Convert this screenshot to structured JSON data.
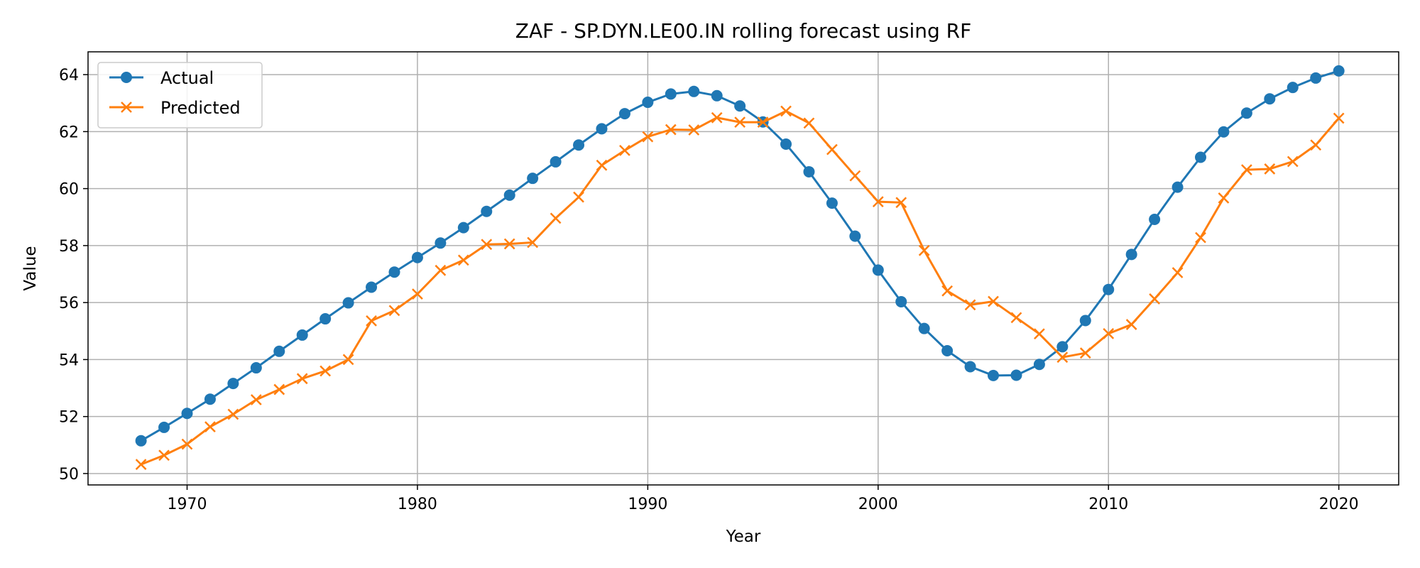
{
  "chart_data": {
    "type": "line",
    "title": "ZAF - SP.DYN.LE00.IN rolling forecast using RF",
    "xlabel": "Year",
    "ylabel": "Value",
    "xlim": [
      1965.7,
      2022.6
    ],
    "ylim": [
      49.6,
      64.8
    ],
    "xticks": [
      1970,
      1980,
      1990,
      2000,
      2010,
      2020
    ],
    "yticks": [
      50,
      52,
      54,
      56,
      58,
      60,
      62,
      64
    ],
    "grid": true,
    "legend_position": "upper-left",
    "x": [
      1968,
      1969,
      1970,
      1971,
      1972,
      1973,
      1974,
      1975,
      1976,
      1977,
      1978,
      1979,
      1980,
      1981,
      1982,
      1983,
      1984,
      1985,
      1986,
      1987,
      1988,
      1989,
      1990,
      1991,
      1992,
      1993,
      1994,
      1995,
      1996,
      1997,
      1998,
      1999,
      2000,
      2001,
      2002,
      2003,
      2004,
      2005,
      2006,
      2007,
      2008,
      2009,
      2010,
      2011,
      2012,
      2013,
      2014,
      2015,
      2016,
      2017,
      2018,
      2019,
      2020
    ],
    "series": [
      {
        "name": "Actual",
        "color": "#1f77b4",
        "marker": "circle",
        "values": [
          51.15,
          51.62,
          52.11,
          52.61,
          53.16,
          53.71,
          54.29,
          54.86,
          55.43,
          55.99,
          56.54,
          57.07,
          57.58,
          58.09,
          58.63,
          59.2,
          59.77,
          60.36,
          60.94,
          61.53,
          62.1,
          62.63,
          63.03,
          63.32,
          63.41,
          63.26,
          62.9,
          62.34,
          61.56,
          60.59,
          59.49,
          58.33,
          57.14,
          56.03,
          55.09,
          54.31,
          53.75,
          53.44,
          53.45,
          53.83,
          54.45,
          55.37,
          56.46,
          57.69,
          58.92,
          60.05,
          61.1,
          61.99,
          62.65,
          63.15,
          63.55,
          63.88,
          64.13
        ]
      },
      {
        "name": "Predicted",
        "color": "#ff7f0e",
        "marker": "x",
        "values": [
          50.32,
          50.64,
          51.03,
          51.64,
          52.08,
          52.59,
          52.95,
          53.33,
          53.6,
          54.0,
          55.36,
          55.72,
          56.3,
          57.13,
          57.49,
          58.04,
          58.06,
          58.11,
          58.96,
          59.7,
          60.82,
          61.34,
          61.82,
          62.07,
          62.06,
          62.49,
          62.33,
          62.33,
          62.72,
          62.3,
          61.37,
          60.45,
          59.54,
          59.51,
          57.83,
          56.41,
          55.92,
          56.04,
          55.47,
          54.9,
          54.08,
          54.23,
          54.91,
          55.23,
          56.13,
          57.05,
          58.28,
          59.67,
          60.66,
          60.69,
          60.95,
          61.53,
          62.47
        ]
      }
    ]
  }
}
